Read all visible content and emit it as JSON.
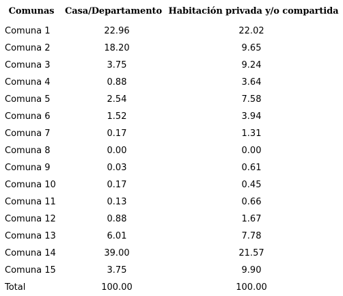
{
  "table": {
    "headers": [
      "Comunas",
      "Casa/Departamento",
      "Habitación privada y/o compartida"
    ],
    "rows": [
      [
        "Comuna 1",
        "22.96",
        "22.02"
      ],
      [
        "Comuna 2",
        "18.20",
        "9.65"
      ],
      [
        "Comuna 3",
        "3.75",
        "9.24"
      ],
      [
        "Comuna 4",
        "0.88",
        "3.64"
      ],
      [
        "Comuna 5",
        "2.54",
        "7.58"
      ],
      [
        "Comuna 6",
        "1.52",
        "3.94"
      ],
      [
        "Comuna 7",
        "0.17",
        "1.31"
      ],
      [
        "Comuna 8",
        "0.00",
        "0.00"
      ],
      [
        "Comuna 9",
        "0.03",
        "0.61"
      ],
      [
        "Comuna 10",
        "0.17",
        "0.45"
      ],
      [
        "Comuna 11",
        "0.13",
        "0.66"
      ],
      [
        "Comuna 12",
        "0.88",
        "1.67"
      ],
      [
        "Comuna 13",
        "6.01",
        "7.78"
      ],
      [
        "Comuna 14",
        "39.00",
        "21.57"
      ],
      [
        "Comuna 15",
        "3.75",
        "9.90"
      ],
      [
        "Total",
        "100.00",
        "100.00"
      ]
    ]
  }
}
